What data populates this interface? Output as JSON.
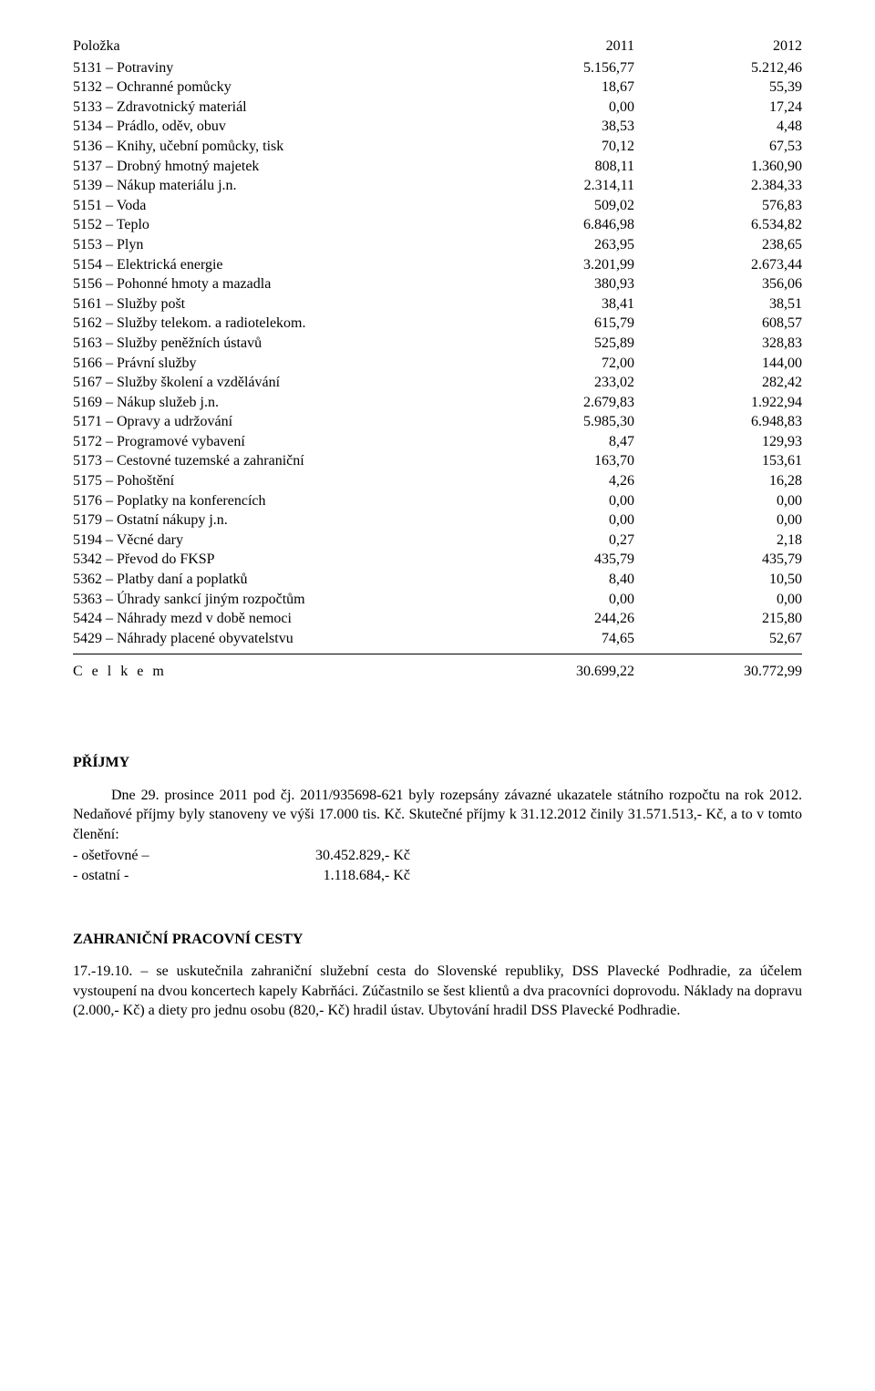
{
  "table": {
    "headers": {
      "col0": "Položka",
      "col1": "2011",
      "col2": "2012"
    },
    "rows": [
      {
        "label": "5131 – Potraviny",
        "y1": "5.156,77",
        "y2": "5.212,46"
      },
      {
        "label": "5132 – Ochranné pomůcky",
        "y1": "18,67",
        "y2": "55,39"
      },
      {
        "label": "5133 – Zdravotnický materiál",
        "y1": "0,00",
        "y2": "17,24"
      },
      {
        "label": "5134 – Prádlo, oděv, obuv",
        "y1": "38,53",
        "y2": "4,48"
      },
      {
        "label": "5136 – Knihy, učební pomůcky, tisk",
        "y1": "70,12",
        "y2": "67,53"
      },
      {
        "label": "5137 – Drobný hmotný majetek",
        "y1": "808,11",
        "y2": "1.360,90"
      },
      {
        "label": "5139 – Nákup materiálu j.n.",
        "y1": "2.314,11",
        "y2": "2.384,33"
      },
      {
        "label": "5151 – Voda",
        "y1": "509,02",
        "y2": "576,83"
      },
      {
        "label": "5152 – Teplo",
        "y1": "6.846,98",
        "y2": "6.534,82"
      },
      {
        "label": "5153 – Plyn",
        "y1": "263,95",
        "y2": "238,65"
      },
      {
        "label": "5154 – Elektrická energie",
        "y1": "3.201,99",
        "y2": "2.673,44"
      },
      {
        "label": "5156 – Pohonné hmoty a mazadla",
        "y1": "380,93",
        "y2": "356,06"
      },
      {
        "label": "5161 – Služby pošt",
        "y1": "38,41",
        "y2": "38,51"
      },
      {
        "label": "5162 – Služby telekom. a radiotelekom.",
        "y1": "615,79",
        "y2": "608,57"
      },
      {
        "label": "5163 – Služby peněžních ústavů",
        "y1": "525,89",
        "y2": "328,83"
      },
      {
        "label": "5166 – Právní služby",
        "y1": "72,00",
        "y2": "144,00"
      },
      {
        "label": "5167 – Služby školení a vzdělávání",
        "y1": "233,02",
        "y2": "282,42"
      },
      {
        "label": "5169 – Nákup služeb j.n.",
        "y1": "2.679,83",
        "y2": "1.922,94"
      },
      {
        "label": "5171 – Opravy a udržování",
        "y1": "5.985,30",
        "y2": "6.948,83"
      },
      {
        "label": "5172 – Programové vybavení",
        "y1": "8,47",
        "y2": "129,93"
      },
      {
        "label": "5173 – Cestovné tuzemské a zahraniční",
        "y1": "163,70",
        "y2": "153,61"
      },
      {
        "label": "5175 – Pohoštění",
        "y1": "4,26",
        "y2": "16,28"
      },
      {
        "label": "5176 – Poplatky na konferencích",
        "y1": "0,00",
        "y2": "0,00"
      },
      {
        "label": "5179 – Ostatní nákupy j.n.",
        "y1": "0,00",
        "y2": "0,00"
      },
      {
        "label": "5194 – Věcné dary",
        "y1": "0,27",
        "y2": "2,18"
      },
      {
        "label": "5342 – Převod do FKSP",
        "y1": "435,79",
        "y2": "435,79"
      },
      {
        "label": "5362 – Platby daní a poplatků",
        "y1": "8,40",
        "y2": "10,50"
      },
      {
        "label": "5363 – Úhrady sankcí jiným rozpočtům",
        "y1": "0,00",
        "y2": "0,00"
      },
      {
        "label": "5424 – Náhrady mezd v době nemoci",
        "y1": "244,26",
        "y2": "215,80"
      },
      {
        "label": "5429 – Náhrady placené obyvatelstvu",
        "y1": "74,65",
        "y2": "52,67"
      }
    ],
    "total": {
      "label": "C e l k e m",
      "y1": "30.699,22",
      "y2": "30.772,99"
    }
  },
  "sections": {
    "prijmy": {
      "title": "PŘÍJMY",
      "p1": "Dne 29. prosince 2011 pod čj. 2011/935698-621 byly rozepsány závazné ukazatele státního rozpočtu na rok 2012. Nedaňové příjmy byly stanoveny ve výši 17.000 tis. Kč. Skutečné příjmy k 31.12.2012 činily 31.571.513,- Kč, a to v tomto členění:",
      "kv1_k": "- ošetřovné –",
      "kv1_v": "30.452.829,-  Kč",
      "kv2_k": "- ostatní -",
      "kv2_v": "1.118.684,-  Kč"
    },
    "zahranicni": {
      "title": "ZAHRANIČNÍ PRACOVNÍ CESTY",
      "p1": "17.-19.10. – se uskutečnila zahraniční služební cesta do Slovenské republiky, DSS Plavecké Podhradie, za účelem vystoupení na dvou koncertech kapely Kabrňáci. Zúčastnilo se šest klientů a dva pracovníci doprovodu. Náklady na dopravu (2.000,- Kč) a diety pro jednu osobu (820,- Kč) hradil ústav. Ubytování hradil DSS Plavecké Podhradie."
    }
  }
}
